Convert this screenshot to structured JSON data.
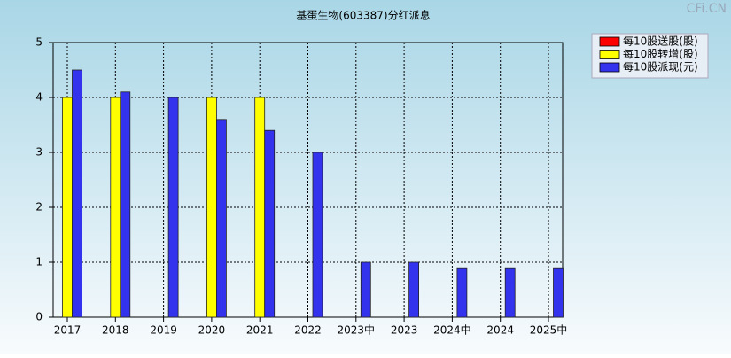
{
  "chart_data": {
    "type": "bar",
    "title": "基蛋生物(603387)分红派息",
    "watermark": "CFi.CN",
    "categories": [
      "2017",
      "2018",
      "2019",
      "2020",
      "2021",
      "2022",
      "2023中",
      "2023",
      "2024中",
      "2024",
      "2025中"
    ],
    "series": [
      {
        "name": "每10股送股(股)",
        "color": "#ff0000",
        "values": [
          null,
          null,
          null,
          null,
          null,
          null,
          null,
          null,
          null,
          null,
          null
        ]
      },
      {
        "name": "每10股转增(股)",
        "color": "#ffff00",
        "values": [
          4,
          4,
          null,
          4,
          4,
          null,
          null,
          null,
          null,
          null,
          null
        ]
      },
      {
        "name": "每10股派现(元)",
        "color": "#3333ee",
        "values": [
          4.5,
          4.1,
          4,
          3.6,
          3.4,
          3,
          1,
          1,
          0.9,
          0.9,
          0.9
        ]
      }
    ],
    "ylim": [
      0,
      5
    ],
    "yticks": [
      0,
      1,
      2,
      3,
      4,
      5
    ],
    "grid": true,
    "legend": "top-right"
  }
}
